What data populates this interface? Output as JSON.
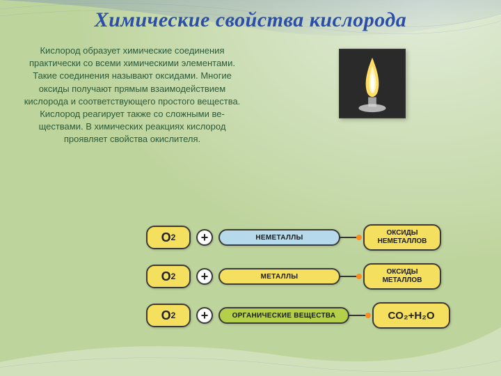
{
  "title": {
    "text": "Химические свойства кислорода",
    "color": "#2b4fa8"
  },
  "paragraph": {
    "text": "Кислород образует химические соединения практически со всеми химическими элементами. Такие сое­динения называют оксидами. Многие оксиды получают прямым взаимодей­ствием кислорода и соответствую­щего простого вещества. Кислород реагирует также со сложными ве­ществами. В химических реакциях кислород проявляет свойства окислителя.",
    "color": "#2a5a3a"
  },
  "photo": {
    "background": "#2a2a2a",
    "flame_outer": "#ffdd66",
    "flame_inner": "#ffffff",
    "burner": "#d8d8d8"
  },
  "background": {
    "page": "#bed49d",
    "swoosh_light": "#e6efe0",
    "swoosh_blue": "#6a7fbf"
  },
  "rows": [
    {
      "o2_fill": "#f4e05e",
      "reactant_label": "НЕМЕТАЛЛЫ",
      "reactant_fill": "#b6d9ec",
      "reactant_width": 175,
      "product_label": "ОКСИДЫ НЕМЕТАЛЛОВ",
      "product_fill": "#f4e05e",
      "product_is_formula": false
    },
    {
      "o2_fill": "#f4e05e",
      "reactant_label": "МЕТАЛЛЫ",
      "reactant_fill": "#f4e05e",
      "reactant_width": 175,
      "product_label": "ОКСИДЫ МЕТАЛЛОВ",
      "product_fill": "#f4e05e",
      "product_is_formula": false
    },
    {
      "o2_fill": "#f4e05e",
      "reactant_label": "ОРГАНИЧЕСКИЕ ВЕЩЕСТВА",
      "reactant_fill": "#b4cf4a",
      "reactant_width": 188,
      "product_label": "CO₂+H₂O",
      "product_fill": "#f4e05e",
      "product_is_formula": true
    }
  ],
  "labels": {
    "o2": "O",
    "o2_sub": "2",
    "plus": "+"
  },
  "style": {
    "pill_border": "#3a3a3a",
    "connector_line": "#333333",
    "connector_dot": "#ff8b1f"
  }
}
